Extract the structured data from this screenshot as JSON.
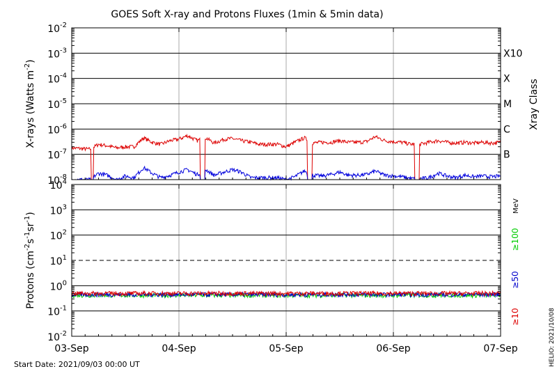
{
  "title": "GOES Soft X-ray and Protons Fluxes   (1min & 5min data)",
  "footer": {
    "start_date": "Start Date: 2021/09/03 00:00 UT",
    "credit": "HELIO: 2021/10/08"
  },
  "colors": {
    "xray_long": "#dd0000",
    "xray_short": "#0000dd",
    "proton_10": "#dd0000",
    "proton_50": "#0000cc",
    "proton_100": "#00cc00",
    "gridline": "#000000",
    "day_line": "#aaaaaa"
  },
  "chart_data": [
    {
      "type": "line",
      "panel": "xray",
      "ylabel": "X-rays (Watts m^-2)",
      "yscale": "log",
      "ylim": [
        1e-08,
        0.01
      ],
      "ytick_labels": [
        "10-8",
        "10-7",
        "10-6",
        "10-5",
        "10-4",
        "10-3",
        "10-2"
      ],
      "right_label": "Xray Class",
      "class_labels": [
        {
          "label": "X10",
          "value": 0.001
        },
        {
          "label": "X",
          "value": 0.0001
        },
        {
          "label": "M",
          "value": 1e-05
        },
        {
          "label": "C",
          "value": 1e-06
        },
        {
          "label": "B",
          "value": 1e-07
        }
      ],
      "x_days": [
        0,
        0.08,
        0.17,
        0.25,
        0.33,
        0.42,
        0.5,
        0.58,
        0.67,
        0.75,
        0.83,
        0.92,
        1.0,
        1.08,
        1.17,
        1.25,
        1.33,
        1.42,
        1.5,
        1.58,
        1.67,
        1.75,
        1.83,
        1.92,
        2.0,
        2.08,
        2.17,
        2.25,
        2.33,
        2.42,
        2.5,
        2.58,
        2.67,
        2.75,
        2.83,
        2.92,
        3.0,
        3.08,
        3.17,
        3.25,
        3.33,
        3.42,
        3.5,
        3.58,
        3.67,
        3.75,
        3.83,
        3.92,
        4.0
      ],
      "series": [
        {
          "name": "long",
          "values": [
            1.8e-07,
            1.7e-07,
            1.6e-07,
            2.5e-07,
            2.2e-07,
            1.8e-07,
            2e-07,
            2e-07,
            4.5e-07,
            3e-07,
            2.5e-07,
            3.5e-07,
            4e-07,
            5.5e-07,
            3.5e-07,
            4.5e-07,
            2.8e-07,
            4e-07,
            4.2e-07,
            3.5e-07,
            3e-07,
            2.5e-07,
            2.5e-07,
            2.5e-07,
            2e-07,
            3e-07,
            4.5e-07,
            2.8e-07,
            3e-07,
            3e-07,
            3.5e-07,
            3e-07,
            3e-07,
            3.2e-07,
            5e-07,
            3.5e-07,
            3.2e-07,
            3e-07,
            2.5e-07,
            2.5e-07,
            3e-07,
            3.5e-07,
            3e-07,
            2.8e-07,
            3e-07,
            2.8e-07,
            3e-07,
            2.8e-07,
            3e-07
          ]
        },
        {
          "name": "short",
          "values": [
            1e-08,
            1e-08,
            1e-08,
            1.8e-08,
            1.5e-08,
            1e-08,
            1.4e-08,
            1.2e-08,
            3e-08,
            1.8e-08,
            1.2e-08,
            1.5e-08,
            2e-08,
            2.5e-08,
            1.6e-08,
            2.5e-08,
            1.5e-08,
            2e-08,
            2.5e-08,
            2e-08,
            1.2e-08,
            1.2e-08,
            1.2e-08,
            1.2e-08,
            1e-08,
            1.3e-08,
            2.2e-08,
            1.5e-08,
            1.4e-08,
            1.6e-08,
            2e-08,
            1.5e-08,
            1.5e-08,
            1.6e-08,
            2.2e-08,
            1.5e-08,
            1.4e-08,
            1.3e-08,
            1.1e-08,
            1.1e-08,
            1.2e-08,
            1.8e-08,
            1.4e-08,
            1.2e-08,
            1.5e-08,
            1.3e-08,
            1.4e-08,
            1.3e-08,
            1.4e-08
          ]
        }
      ],
      "dropouts": [
        0.18,
        0.2,
        1.2,
        1.24,
        2.2,
        2.24,
        3.2,
        3.24
      ]
    },
    {
      "type": "line",
      "panel": "protons",
      "ylabel": "Protons (cm^-2 s^-1 sr^-1)",
      "yscale": "log",
      "ylim": [
        0.01,
        10000
      ],
      "ytick_labels": [
        "10-2",
        "10-1",
        "100",
        "101",
        "102",
        "103",
        "104"
      ],
      "unit_label": "MeV",
      "threshold": 10,
      "series": [
        {
          "name": "≥10",
          "value": 0.5
        },
        {
          "name": "≥50",
          "value": 0.45
        },
        {
          "name": "≥100",
          "value": 0.42
        }
      ]
    }
  ],
  "x_axis": {
    "tick_labels": [
      "03-Sep",
      "04-Sep",
      "05-Sep",
      "06-Sep",
      "07-Sep"
    ]
  }
}
